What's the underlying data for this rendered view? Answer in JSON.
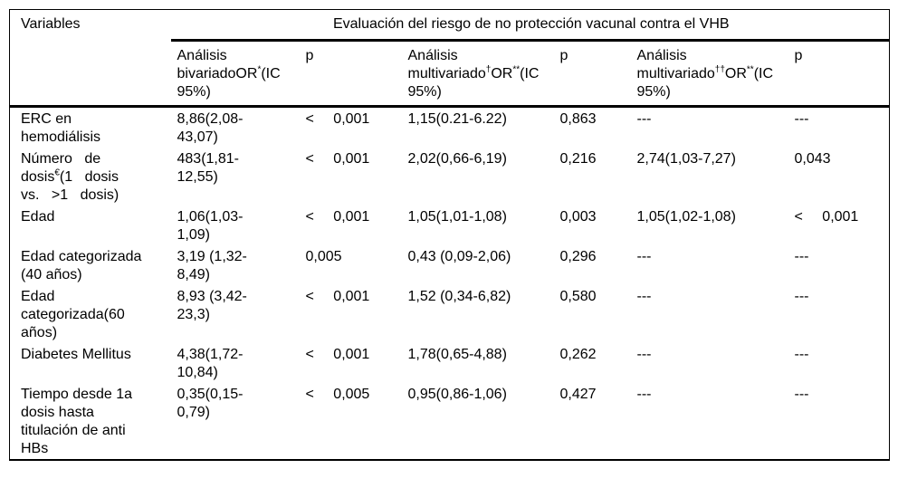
{
  "page": {
    "background_color": "#ffffff",
    "text_color": "#000000",
    "rule_color": "#000000"
  },
  "table": {
    "header": {
      "variables_label": "Variables",
      "span_label": "Evaluación del riesgo de no protección vacunal contra el VHB",
      "bivariate": {
        "pre": "Análisis bivariadoOR",
        "sup": "*",
        "post": "(IC 95%)"
      },
      "p_label_1": "p",
      "multivariate_1": {
        "pre": "Análisis multivariado",
        "sup_dagger": "†",
        "mid": "OR",
        "sup_star": "**",
        "post": "(IC 95%)"
      },
      "p_label_2": "p",
      "multivariate_2": {
        "pre": "Análisis multivariado",
        "sup_dagger": "††",
        "mid": "OR",
        "sup_star": "**",
        "post": "(IC 95%)"
      },
      "p_label_3": "p"
    },
    "rows": [
      {
        "variable": "ERC en hemodiálisis",
        "bivariate_or": "8,86(2,08-43,07)",
        "p1": "< 0,001",
        "multi1_or": "1,15(0.21-6.22)",
        "p2": "0,863",
        "multi2_or": "---",
        "p3": "---"
      },
      {
        "variable_pre": "Número de dosis",
        "variable_sup": "€",
        "variable_post": "(1 dosis vs. >1 dosis)",
        "bivariate_or": "483(1,81-12,55)",
        "p1": "< 0,001",
        "multi1_or": "2,02(0,66-6,19)",
        "p2": "0,216",
        "multi2_or": "2,74(1,03-7,27)",
        "p3": "0,043"
      },
      {
        "variable": "Edad",
        "bivariate_or": "1,06(1,03-1,09)",
        "p1": "< 0,001",
        "multi1_or": "1,05(1,01-1,08)",
        "p2": "0,003",
        "multi2_or": "1,05(1,02-1,08)",
        "p3": "< 0,001"
      },
      {
        "variable": "Edad categorizada (40 años)",
        "bivariate_or": "3,19 (1,32-8,49)",
        "p1": "0,005",
        "multi1_or": "0,43 (0,09-2,06)",
        "p2": "0,296",
        "multi2_or": "---",
        "p3": "---"
      },
      {
        "variable": "Edad categorizada(60 años)",
        "bivariate_or": "8,93 (3,42-23,3)",
        "p1": "< 0,001",
        "multi1_or": "1,52 (0,34-6,82)",
        "p2": "0,580",
        "multi2_or": "---",
        "p3": "---"
      },
      {
        "variable": "Diabetes Mellitus",
        "bivariate_or": "4,38(1,72-10,84)",
        "p1": "< 0,001",
        "multi1_or": "1,78(0,65-4,88)",
        "p2": "0,262",
        "multi2_or": "---",
        "p3": "---"
      },
      {
        "variable": "Tiempo desde 1a dosis hasta titulación de anti HBs",
        "bivariate_or": "0,35(0,15-0,79)",
        "p1": "< 0,005",
        "multi1_or": "0,95(0,86-1,06)",
        "p2": "0,427",
        "multi2_or": "---",
        "p3": "---"
      }
    ]
  }
}
